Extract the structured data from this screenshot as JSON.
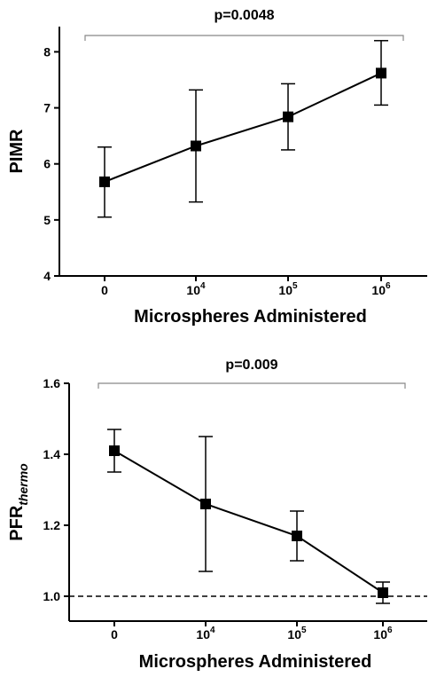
{
  "chart_data": [
    {
      "type": "line",
      "annotation": "p=0.0048",
      "xlabel": "Microspheres Administered",
      "ylabel": "PIMR",
      "ylabel_sub": "",
      "categories": [
        {
          "base": "0",
          "exp": ""
        },
        {
          "base": "10",
          "exp": "4"
        },
        {
          "base": "10",
          "exp": "5"
        },
        {
          "base": "10",
          "exp": "6"
        }
      ],
      "yticks": [
        "4",
        "5",
        "6",
        "7",
        "8"
      ],
      "ylim": [
        4,
        8.45
      ],
      "series": [
        {
          "values": [
            5.68,
            6.32,
            6.84,
            7.62
          ],
          "err_low": [
            5.05,
            5.32,
            6.25,
            7.05
          ],
          "err_high": [
            6.3,
            7.32,
            7.43,
            8.2
          ]
        }
      ],
      "reference_line": null
    },
    {
      "type": "line",
      "annotation": "p=0.009",
      "xlabel": "Microspheres Administered",
      "ylabel": "PFR",
      "ylabel_sub": "thermo",
      "categories": [
        {
          "base": "0",
          "exp": ""
        },
        {
          "base": "10",
          "exp": "4"
        },
        {
          "base": "10",
          "exp": "5"
        },
        {
          "base": "10",
          "exp": "6"
        }
      ],
      "yticks": [
        "1.0",
        "1.2",
        "1.4",
        "1.6"
      ],
      "ylim": [
        0.93,
        1.6
      ],
      "series": [
        {
          "values": [
            1.41,
            1.26,
            1.17,
            1.01
          ],
          "err_low": [
            1.35,
            1.07,
            1.1,
            0.98
          ],
          "err_high": [
            1.47,
            1.45,
            1.24,
            1.04
          ]
        }
      ],
      "reference_line": 1.0
    }
  ]
}
